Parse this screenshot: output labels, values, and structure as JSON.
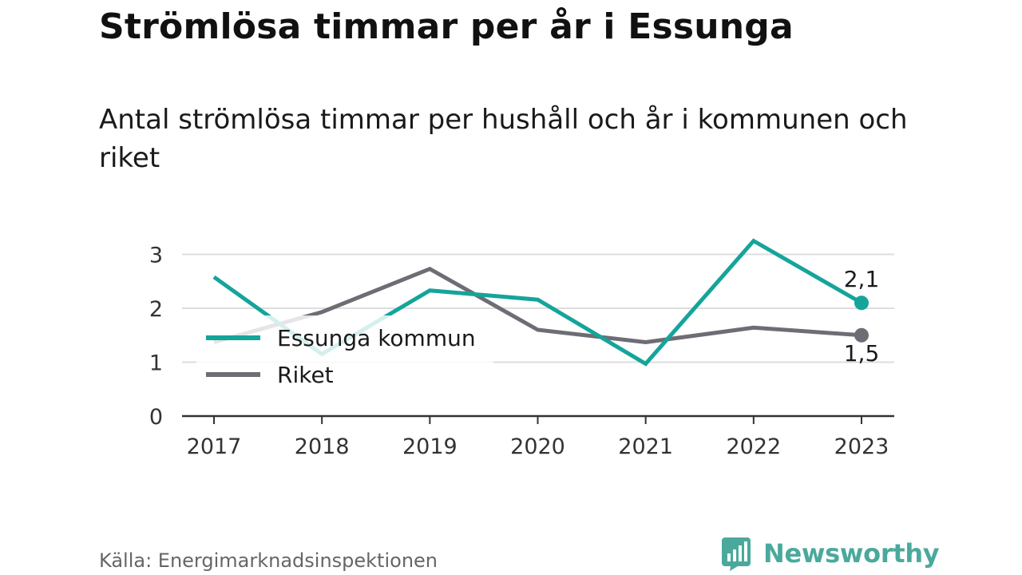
{
  "title": "Strömlösa timmar per år i Essunga",
  "subtitle": "Antal strömlösa timmar per hushåll och år i kommunen och riket",
  "source": "Källa: Energimarknadsinspektionen",
  "brand": "Newsworthy",
  "colors": {
    "essunga": "#15a49a",
    "riket": "#6e6c74",
    "grid": "#dddddd",
    "axis": "#333333"
  },
  "chart_data": {
    "type": "line",
    "x": [
      "2017",
      "2018",
      "2019",
      "2020",
      "2021",
      "2022",
      "2023"
    ],
    "y_ticks": [
      "0",
      "1",
      "2",
      "3"
    ],
    "ylim": [
      0,
      3.3
    ],
    "grid": true,
    "legend_position": "left",
    "series": [
      {
        "name": "Essunga kommun",
        "values": [
          2.58,
          1.15,
          2.33,
          2.16,
          0.97,
          3.25,
          2.1
        ]
      },
      {
        "name": "Riket",
        "values": [
          1.37,
          1.93,
          2.73,
          1.6,
          1.37,
          1.64,
          1.5
        ]
      }
    ],
    "end_labels": [
      "2,1",
      "1,5"
    ]
  }
}
